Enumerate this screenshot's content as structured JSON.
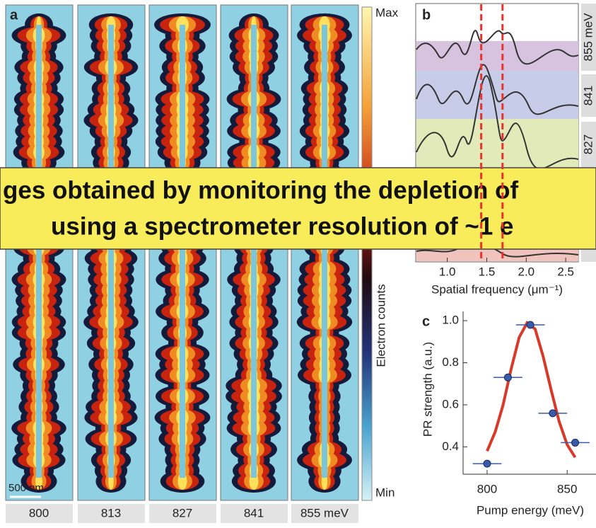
{
  "panel_a": {
    "label": "a",
    "energy_labels": [
      "800",
      "813",
      "827",
      "841",
      "855 meV"
    ],
    "colorbar": {
      "max": "Max",
      "min": "Min",
      "label": "Electron counts"
    },
    "scale_bar": "500 nm"
  },
  "panel_b": {
    "label": "b",
    "curve_labels": [
      "855 meV",
      "841",
      "827"
    ],
    "xlim": [
      0.6,
      2.66
    ],
    "xticks": [
      {
        "value": 1,
        "label": "1.0"
      },
      1.5,
      {
        "value": 2,
        "label": "2.0"
      },
      2.5
    ],
    "xlabel": "Spatial frequency (μm⁻¹)",
    "markers": [
      1.43,
      1.7
    ],
    "marker_color": "#e8322b"
  },
  "chart_data": {
    "type": "scatter",
    "label": "c",
    "x": [
      800,
      813,
      827,
      841,
      855
    ],
    "series": [
      {
        "color": "#3a5ba8",
        "values": [
          0.32,
          0.73,
          0.98,
          0.56,
          0.42
        ],
        "x_error": [
          9,
          9,
          9,
          9,
          9
        ]
      }
    ],
    "fit": {
      "color": "#d83a2a",
      "x": [
        800,
        805,
        810,
        815,
        820,
        825,
        830,
        835,
        840,
        845,
        850,
        855
      ],
      "values": [
        0.38,
        0.47,
        0.6,
        0.77,
        0.92,
        0.99,
        0.96,
        0.83,
        0.67,
        0.52,
        0.41,
        0.35
      ]
    },
    "xlim": [
      785,
      868
    ],
    "ylim": [
      0.27,
      1.044
    ],
    "xticks": [
      800,
      850
    ],
    "yticks": [
      0.4,
      0.6,
      0.8,
      {
        "value": 1,
        "label": "1.0"
      }
    ],
    "xlabel": "Pump energy (meV)",
    "ylabel": "PR strength (a.u.)"
  },
  "banner": {
    "lines": [
      "ges obtained by monitoring the depletion of",
      "using a spectrometer resolution of ~1 e"
    ]
  }
}
